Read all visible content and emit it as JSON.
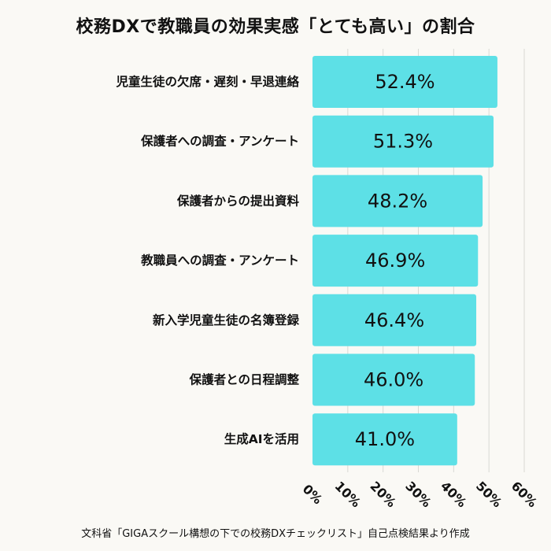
{
  "chart_data": {
    "type": "bar",
    "orientation": "horizontal",
    "title": "校務DXで教職員の効果実感「とても高い」の割合",
    "categories": [
      "児童生徒の欠席・遅刻・早退連絡",
      "保護者への調査・アンケート",
      "保護者からの提出資料",
      "教職員への調査・アンケート",
      "新入学児童生徒の名簿登録",
      "保護者との日程調整",
      "生成AIを活用"
    ],
    "values": [
      52.4,
      51.3,
      48.2,
      46.9,
      46.4,
      46.0,
      41.0
    ],
    "value_labels": [
      "52.4%",
      "51.3%",
      "48.2%",
      "46.9%",
      "46.4%",
      "46.0%",
      "41.0%"
    ],
    "xlim": [
      0,
      60
    ],
    "xticks": [
      0,
      10,
      20,
      30,
      40,
      50,
      60
    ],
    "xtick_labels": [
      "0%",
      "10%",
      "20%",
      "30%",
      "40%",
      "50%",
      "60%"
    ],
    "grid": "vertical",
    "bar_color": "#5de0e6",
    "background_color": "#faf9f5",
    "source": "文科省「GIGAスクール構想の下での校務DXチェックリスト」自己点検結果より作成"
  }
}
